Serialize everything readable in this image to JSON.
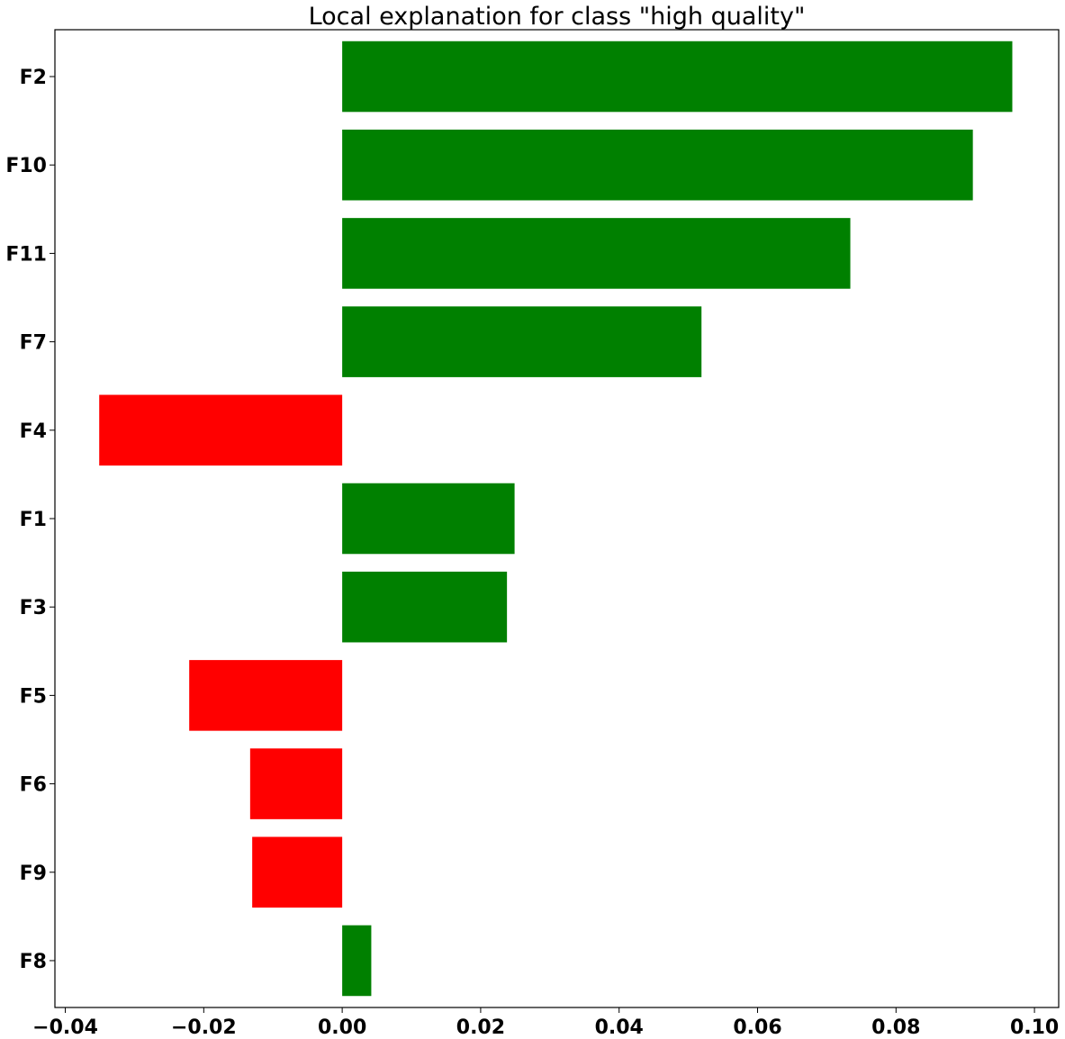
{
  "chart_data": {
    "type": "bar",
    "orientation": "horizontal",
    "title": "Local explanation for class \"high quality\"",
    "xlabel": "",
    "ylabel": "",
    "categories": [
      "F2",
      "F10",
      "F11",
      "F7",
      "F4",
      "F1",
      "F3",
      "F5",
      "F6",
      "F9",
      "F8"
    ],
    "values": [
      0.0968,
      0.0911,
      0.0734,
      0.0519,
      -0.0351,
      0.0249,
      0.0238,
      -0.0221,
      -0.0133,
      -0.013,
      0.0042
    ],
    "xlim": [
      -0.0415,
      0.1035
    ],
    "xticks": [
      -0.04,
      -0.02,
      0.0,
      0.02,
      0.04,
      0.06,
      0.08,
      0.1
    ],
    "xtick_labels": [
      "−0.04",
      "−0.02",
      "0.00",
      "0.02",
      "0.04",
      "0.06",
      "0.08",
      "0.10"
    ],
    "grid": false,
    "legend": "none",
    "colors": {
      "positive": "#008000",
      "negative": "#ff0000",
      "axis": "#000000"
    }
  }
}
